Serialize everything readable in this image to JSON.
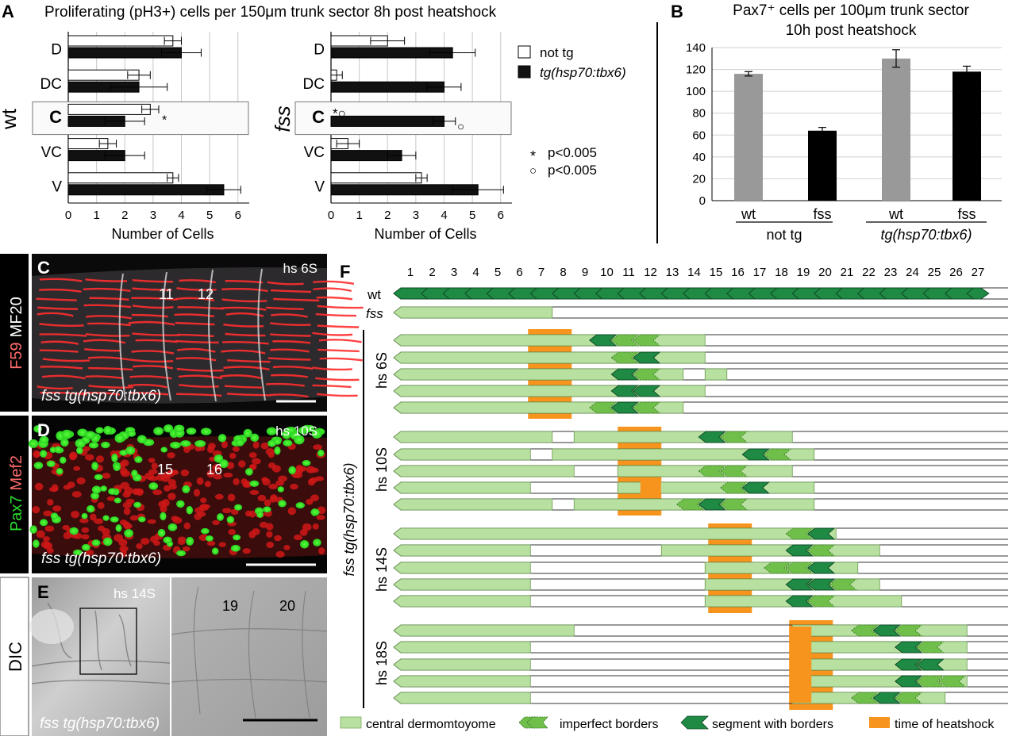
{
  "panel_labels": {
    "A": "A",
    "B": "B",
    "C": "C",
    "D": "D",
    "E": "E",
    "F": "F"
  },
  "panel_a": {
    "title": "Proliferating (pH3+) cells per 150μm trunk sector 8h post heatshock",
    "legend": {
      "not_tg": "not tg",
      "tg": "tg(hsp70:tbx6)"
    },
    "significance": [
      {
        "symbol": "*",
        "text": "p<0.005"
      },
      {
        "symbol": "○",
        "text": "p<0.005"
      }
    ]
  },
  "panel_b": {
    "title_line1": "Pax7⁺ cells per 100μm trunk sector",
    "title_line2": "10h post heatshock",
    "group_not_tg": "not tg",
    "group_tg": "tg(hsp70:tbx6)"
  },
  "chart_data": [
    {
      "type": "bar",
      "orientation": "horizontal",
      "panel": "A-left",
      "row_label": "wt",
      "categories": [
        "D",
        "DC",
        "C",
        "VC",
        "V"
      ],
      "series": [
        {
          "name": "not tg",
          "values": [
            3.7,
            2.5,
            2.9,
            1.4,
            3.7
          ],
          "errors": [
            0.3,
            0.4,
            0.3,
            0.3,
            0.2
          ]
        },
        {
          "name": "tg(hsp70:tbx6)",
          "values": [
            4.0,
            2.5,
            2.0,
            2.0,
            5.5
          ],
          "errors": [
            0.7,
            1.0,
            0.7,
            0.7,
            0.6
          ]
        }
      ],
      "xlabel": "Number of Cells",
      "xlim": [
        0,
        6.4
      ],
      "xticks": [
        "0",
        "1",
        "2",
        "3",
        "4",
        "5",
        "6"
      ],
      "highlight": "C",
      "annotations": [
        {
          "category": "C",
          "text": "*"
        }
      ]
    },
    {
      "type": "bar",
      "orientation": "horizontal",
      "panel": "A-right",
      "row_label": "fss",
      "categories": [
        "D",
        "DC",
        "C",
        "VC",
        "V"
      ],
      "series": [
        {
          "name": "not tg",
          "values": [
            2.0,
            0.2,
            0.0,
            0.6,
            3.2
          ],
          "errors": [
            0.6,
            0.2,
            0.0,
            0.4,
            0.2
          ]
        },
        {
          "name": "tg(hsp70:tbx6)",
          "values": [
            4.3,
            4.0,
            4.0,
            2.5,
            5.2
          ],
          "errors": [
            0.8,
            0.6,
            0.4,
            0.5,
            0.9
          ]
        }
      ],
      "xlabel": "Number of Cells",
      "xlim": [
        0,
        6.4
      ],
      "xticks": [
        "0",
        "1",
        "2",
        "3",
        "4",
        "5",
        "6"
      ],
      "highlight": "C",
      "annotations": [
        {
          "category": "C",
          "text": "*○"
        },
        {
          "category": "C",
          "text": "○"
        }
      ]
    },
    {
      "type": "bar",
      "panel": "B",
      "categories": [
        "wt",
        "fss",
        "wt",
        "fss"
      ],
      "groups": [
        "not tg",
        "tg(hsp70:tbx6)"
      ],
      "values": [
        116,
        64,
        130,
        118
      ],
      "errors": [
        2,
        3,
        8,
        5
      ],
      "colors": [
        "#999999",
        "#000000",
        "#999999",
        "#000000"
      ],
      "ylim": [
        0,
        140
      ],
      "yticks": [
        "0",
        "20",
        "40",
        "60",
        "80",
        "100",
        "120",
        "140"
      ],
      "grid": true
    }
  ],
  "micro": {
    "c_side_label": {
      "a": "F59",
      "b": "MF20"
    },
    "c_hs": "hs 6S",
    "c_somites": [
      "11",
      "12"
    ],
    "c_caption": "fss tg(hsp70:tbx6)",
    "d_side_label": {
      "a": "Pax7",
      "b": "Mef2"
    },
    "d_hs": "hs 10S",
    "d_somites": [
      "15",
      "16"
    ],
    "d_caption": "fss tg(hsp70:tbx6)",
    "e_side_label": "DIC",
    "e_hs": "hs 14S",
    "e_somites": [
      "19",
      "20"
    ],
    "e_caption": "fss tg(hsp70:tbx6)"
  },
  "panel_f": {
    "columns": [
      "1",
      "2",
      "3",
      "4",
      "5",
      "6",
      "7",
      "8",
      "9",
      "10",
      "11",
      "12",
      "13",
      "14",
      "15",
      "16",
      "17",
      "18",
      "19",
      "20",
      "21",
      "22",
      "23",
      "24",
      "25",
      "26",
      "27"
    ],
    "wt_label": "wt",
    "fss_label": "fss",
    "side_label": "fss tg(hsp70:tbx6)",
    "group_labels": [
      "hs 6S",
      "hs 10S",
      "hs 14S",
      "hs 18S"
    ],
    "colors": {
      "central": "#b8e0a0",
      "imperfect": "#6fbf4a",
      "segment": "#1e8a44",
      "heatshock": "#f7941d"
    },
    "legend": {
      "central": "central dermomtoyome",
      "imperfect": "imperfect borders",
      "segment": "segment with borders",
      "heatshock": "time of heatshock"
    }
  }
}
